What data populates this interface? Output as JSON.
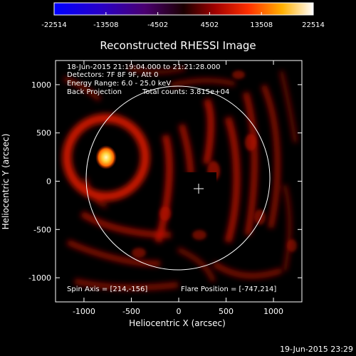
{
  "colorbar": {
    "ticks": [
      {
        "value": -22514,
        "label": "-22514"
      },
      {
        "value": -13508,
        "label": "-13508"
      },
      {
        "value": -4502,
        "label": "-4502"
      },
      {
        "value": 4502,
        "label": "4502"
      },
      {
        "value": 13508,
        "label": "13508"
      },
      {
        "value": 22514,
        "label": "22514"
      }
    ],
    "range": [
      -22514,
      22514
    ]
  },
  "title": "Reconstructed RHESSI Image",
  "info": {
    "time_range": "18-Jun-2015 21:19:04.000 to 21:21:28.000",
    "detectors": "Detectors: 7F 8F 9F, Att 0",
    "energy_range": "Energy Range: 6.0 - 25.0 keV",
    "method": "Back Projection",
    "total_counts": "Total counts: 3.815e+04",
    "spin_axis": "Spin Axis = [214,-156]",
    "flare_position": "Flare Position = [-747,214]"
  },
  "axes": {
    "x_label": "Heliocentric X (arcsec)",
    "y_label": "Heliocentric Y (arcsec)",
    "x_range": [
      -1300,
      1300
    ],
    "y_range": [
      -1250,
      1250
    ],
    "x_ticks": [
      {
        "value": -1000,
        "label": "-1000"
      },
      {
        "value": -500,
        "label": "-500"
      },
      {
        "value": 0,
        "label": "0"
      },
      {
        "value": 500,
        "label": "500"
      },
      {
        "value": 1000,
        "label": "1000"
      }
    ],
    "y_ticks": [
      {
        "value": 1000,
        "label": "1000"
      },
      {
        "value": 500,
        "label": "500"
      },
      {
        "value": 0,
        "label": "0"
      },
      {
        "value": -500,
        "label": "-500"
      },
      {
        "value": -1000,
        "label": "-1000"
      }
    ]
  },
  "timestamp": "19-Jun-2015 23:29",
  "colors": {
    "background": "#000000",
    "foreground": "#ffffff",
    "emission": "#cc1500",
    "hot": "#ffe24a"
  }
}
